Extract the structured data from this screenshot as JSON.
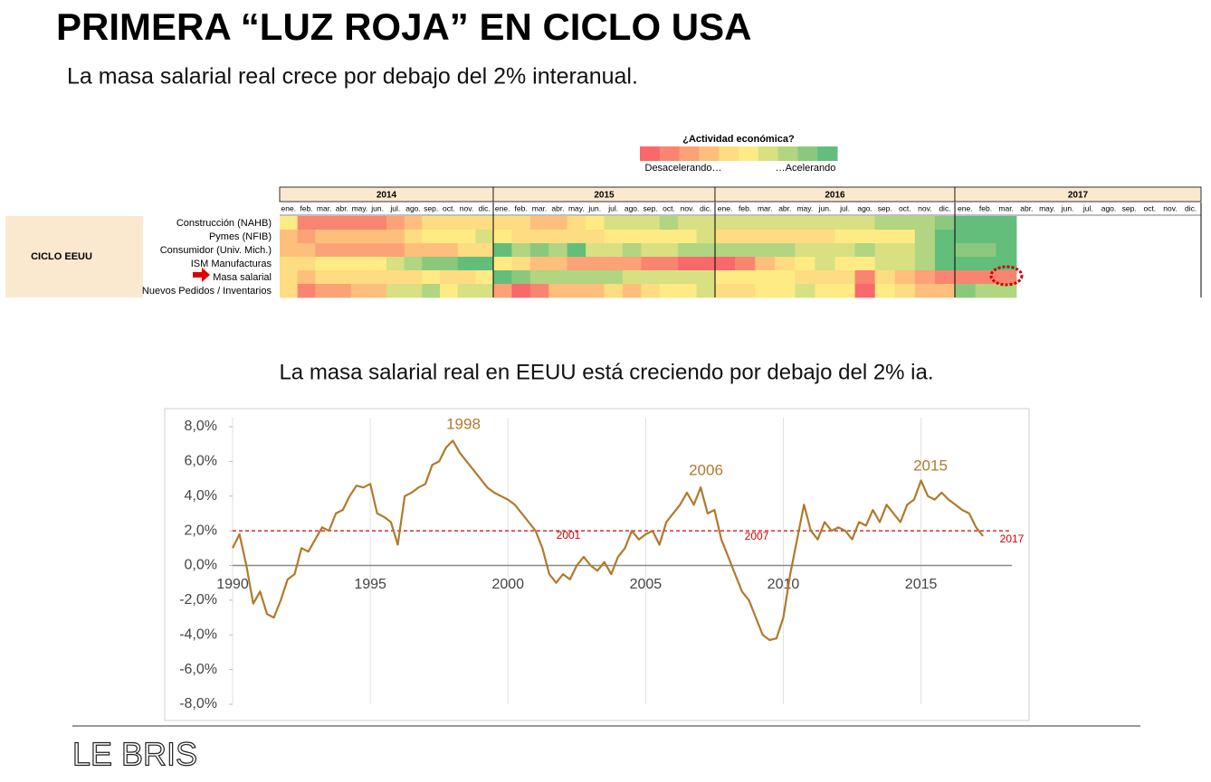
{
  "header": {
    "title": "PRIMERA “LUZ ROJA” EN CICLO USA",
    "subtitle": "La masa salarial real crece por debajo del 2% interanual.",
    "footer": "LE BRIS"
  },
  "heatmap": {
    "legend_title": "¿Actividad económica?",
    "legend_low": "Desacelerando…",
    "legend_high": "…Acelerando",
    "legend_colors": [
      "#f8696b",
      "#f98570",
      "#fba276",
      "#fdbf7b",
      "#fedc81",
      "#ffeb84",
      "#d8e082",
      "#b1d580",
      "#8ac97d",
      "#63be7b"
    ],
    "group_label": "CICLO EEUU",
    "years": [
      2014,
      2015,
      2016,
      2017
    ],
    "months": [
      "ene.",
      "feb.",
      "mar.",
      "abr.",
      "may.",
      "jun.",
      "jul.",
      "ago.",
      "sep.",
      "oct.",
      "nov.",
      "dic."
    ],
    "rows": [
      {
        "label": "Construcción (NAHB)",
        "values": [
          5,
          1,
          1,
          1,
          1,
          1,
          2,
          3,
          4,
          4,
          4,
          4,
          4,
          4,
          3,
          3,
          4,
          5,
          6,
          6,
          6,
          7,
          6,
          6,
          6,
          6,
          6,
          6,
          6,
          6,
          6,
          6,
          7,
          7,
          7,
          8,
          9,
          9,
          9
        ]
      },
      {
        "label": "Pymes (NFIB)",
        "values": [
          3,
          2,
          3,
          3,
          3,
          3,
          3,
          4,
          5,
          5,
          5,
          6,
          5,
          4,
          4,
          4,
          4,
          4,
          5,
          5,
          5,
          5,
          5,
          6,
          4,
          4,
          4,
          4,
          4,
          4,
          5,
          5,
          5,
          5,
          7,
          9,
          9,
          9,
          9
        ]
      },
      {
        "label": "Consumidor (Univ. Mich.)",
        "values": [
          3,
          3,
          2,
          2,
          2,
          2,
          2,
          3,
          3,
          3,
          4,
          4,
          9,
          7,
          8,
          7,
          9,
          6,
          6,
          7,
          6,
          6,
          7,
          7,
          7,
          7,
          7,
          7,
          6,
          6,
          6,
          7,
          6,
          6,
          7,
          9,
          8,
          8,
          9
        ]
      },
      {
        "label": "ISM Manufacturas",
        "values": [
          4,
          4,
          5,
          5,
          5,
          5,
          6,
          7,
          8,
          8,
          9,
          9,
          5,
          4,
          3,
          3,
          2,
          2,
          2,
          2,
          1,
          1,
          0,
          0,
          0,
          1,
          3,
          4,
          5,
          6,
          5,
          5,
          6,
          6,
          7,
          9,
          9,
          9,
          9
        ]
      },
      {
        "label": "Masa salarial",
        "values": [
          4,
          3,
          4,
          4,
          4,
          4,
          4,
          4,
          5,
          4,
          4,
          5,
          9,
          8,
          7,
          7,
          7,
          7,
          7,
          6,
          6,
          6,
          6,
          6,
          5,
          5,
          5,
          5,
          4,
          4,
          4,
          1,
          4,
          3,
          2,
          1,
          1,
          1,
          1
        ]
      },
      {
        "label": "Nuevos Pedidos / Inventarios",
        "values": [
          4,
          1,
          2,
          2,
          3,
          3,
          6,
          6,
          7,
          5,
          6,
          6,
          2,
          0,
          1,
          3,
          3,
          3,
          4,
          3,
          4,
          5,
          5,
          6,
          4,
          4,
          5,
          5,
          6,
          5,
          5,
          0,
          5,
          4,
          3,
          3,
          8,
          7,
          7
        ]
      }
    ]
  },
  "chart_data": {
    "type": "line",
    "title": "La masa salarial real en EEUU está creciendo por debajo del 2% ia.",
    "color": "#b07a2c",
    "x": [
      1990,
      1990.25,
      1990.5,
      1990.75,
      1991,
      1991.25,
      1991.5,
      1991.75,
      1992,
      1992.25,
      1992.5,
      1992.75,
      1993,
      1993.25,
      1993.5,
      1993.75,
      1994,
      1994.25,
      1994.5,
      1994.75,
      1995,
      1995.25,
      1995.5,
      1995.75,
      1996,
      1996.25,
      1996.5,
      1996.75,
      1997,
      1997.25,
      1997.5,
      1997.75,
      1998,
      1998.25,
      1998.5,
      1998.75,
      1999,
      1999.25,
      1999.5,
      1999.75,
      2000,
      2000.25,
      2000.5,
      2000.75,
      2001,
      2001.25,
      2001.5,
      2001.75,
      2002,
      2002.25,
      2002.5,
      2002.75,
      2003,
      2003.25,
      2003.5,
      2003.75,
      2004,
      2004.25,
      2004.5,
      2004.75,
      2005,
      2005.25,
      2005.5,
      2005.75,
      2006,
      2006.25,
      2006.5,
      2006.75,
      2007,
      2007.25,
      2007.5,
      2007.75,
      2008,
      2008.25,
      2008.5,
      2008.75,
      2009,
      2009.25,
      2009.5,
      2009.75,
      2010,
      2010.25,
      2010.5,
      2010.75,
      2011,
      2011.25,
      2011.5,
      2011.75,
      2012,
      2012.25,
      2012.5,
      2012.75,
      2013,
      2013.25,
      2013.5,
      2013.75,
      2014,
      2014.25,
      2014.5,
      2014.75,
      2015,
      2015.25,
      2015.5,
      2015.75,
      2016,
      2016.25,
      2016.5,
      2016.75,
      2017,
      2017.25
    ],
    "values": [
      1.0,
      1.8,
      0.0,
      -2.2,
      -1.5,
      -2.8,
      -3.0,
      -2.0,
      -0.8,
      -0.5,
      1.0,
      0.8,
      1.5,
      2.2,
      2.0,
      3.0,
      3.2,
      4.0,
      4.6,
      4.5,
      4.7,
      3.0,
      2.8,
      2.5,
      1.2,
      4.0,
      4.2,
      4.5,
      4.7,
      5.8,
      6.0,
      6.8,
      7.2,
      6.5,
      6.0,
      5.5,
      5.0,
      4.5,
      4.2,
      4.0,
      3.8,
      3.5,
      3.0,
      2.5,
      2.0,
      1.0,
      -0.5,
      -1.0,
      -0.5,
      -0.8,
      0.0,
      0.5,
      0.0,
      -0.3,
      0.2,
      -0.5,
      0.5,
      1.0,
      2.0,
      1.5,
      1.8,
      2.0,
      1.2,
      2.5,
      3.0,
      3.5,
      4.2,
      3.5,
      4.5,
      3.0,
      3.2,
      1.5,
      0.5,
      -0.5,
      -1.5,
      -2.0,
      -3.0,
      -4.0,
      -4.3,
      -4.2,
      -3.0,
      -0.5,
      1.5,
      3.5,
      2.0,
      1.5,
      2.5,
      2.0,
      2.2,
      2.0,
      1.5,
      2.5,
      2.3,
      3.2,
      2.5,
      3.5,
      3.0,
      2.5,
      3.5,
      3.8,
      4.9,
      4.0,
      3.8,
      4.2,
      3.8,
      3.5,
      3.2,
      3.0,
      2.2,
      1.7
    ],
    "threshold": 2,
    "threshold_color": "#d40000",
    "xlim": [
      1990,
      2018.3
    ],
    "xticks": [
      1990,
      1995,
      2000,
      2005,
      2010,
      2015
    ],
    "ylim": [
      -8,
      8
    ],
    "yticks": [
      {
        "value": -8,
        "label": "-8,0%"
      },
      {
        "value": -6,
        "label": "-6,0%"
      },
      {
        "value": -4,
        "label": "-4,0%"
      },
      {
        "value": -2,
        "label": "-2,0%"
      },
      {
        "value": 0,
        "label": "0,0%"
      },
      {
        "value": 2,
        "label": "2,0%"
      },
      {
        "value": 4,
        "label": "4,0%"
      },
      {
        "value": 6,
        "label": "6,0%"
      },
      {
        "value": 8,
        "label": "8,0%"
      }
    ],
    "annotations": [
      "1998",
      "2006",
      "2015",
      "2001",
      "2007",
      "2017"
    ]
  }
}
